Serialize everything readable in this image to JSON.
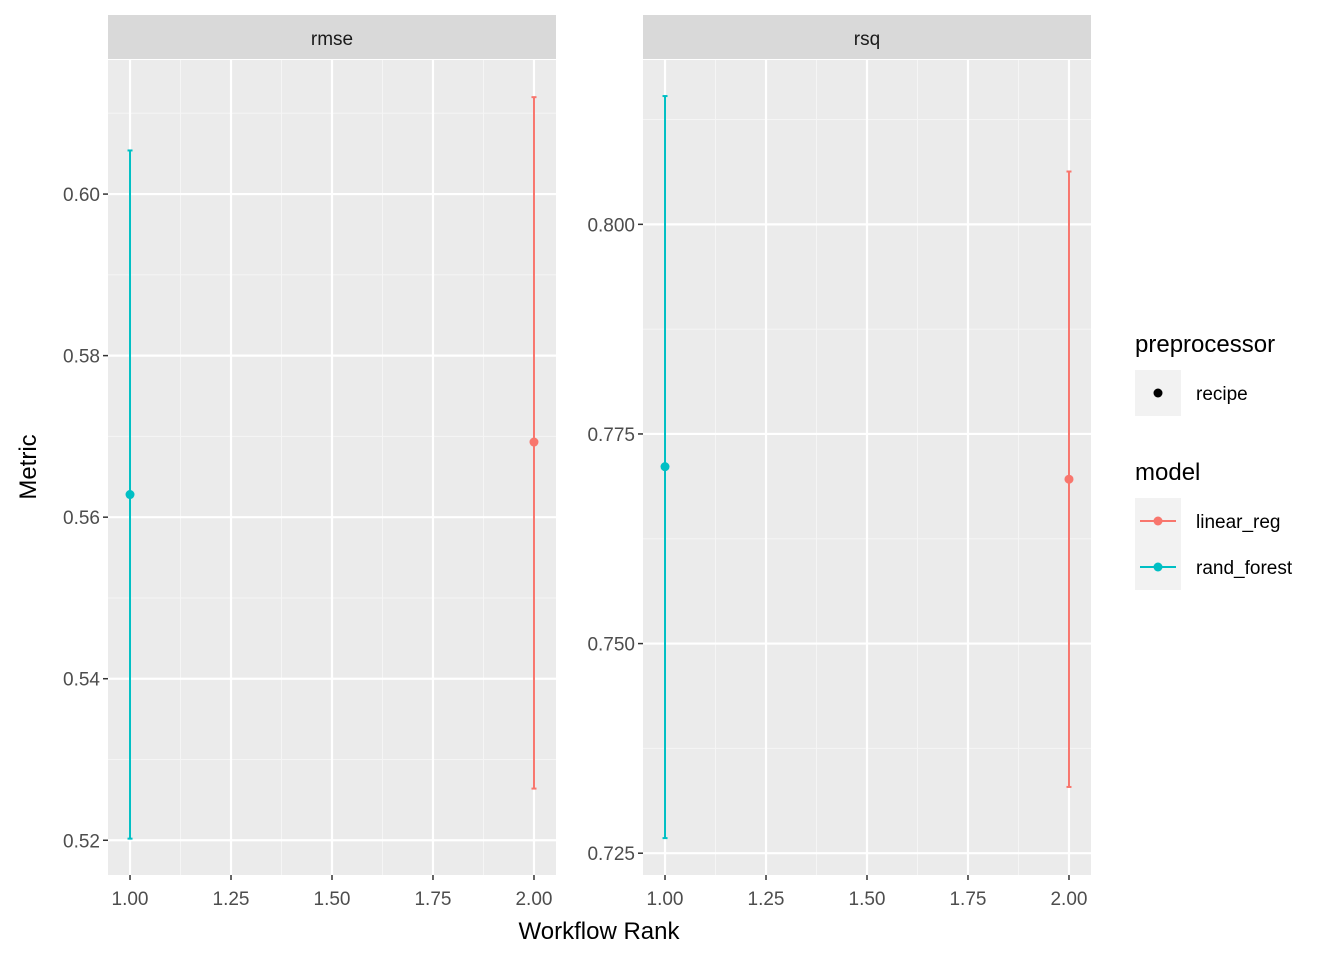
{
  "chart_data": {
    "type": "scatter",
    "subtype": "point-with-errorbars, faceted",
    "xlabel": "Workflow Rank",
    "ylabel": "Metric",
    "x_ticks": [
      "1.00",
      "1.25",
      "1.50",
      "1.75",
      "2.00"
    ],
    "x_tick_values": [
      1.0,
      1.25,
      1.5,
      1.75,
      2.0
    ],
    "xlim": [
      0.9455,
      2.0545
    ],
    "grid": true,
    "colors": {
      "linear_reg": "#F8766D",
      "rand_forest": "#00BFC4",
      "panel_bg": "#EBEBEB",
      "strip_bg": "#D9D9D9"
    },
    "facets": [
      {
        "strip": "rmse",
        "ylim": [
          0.5157,
          0.6166
        ],
        "y_ticks": [
          "0.52",
          "0.54",
          "0.56",
          "0.58",
          "0.60"
        ],
        "y_tick_values": [
          0.52,
          0.54,
          0.56,
          0.58,
          0.6
        ],
        "points": [
          {
            "model": "rand_forest",
            "x": 1,
            "y": 0.5628,
            "ymin": 0.5202,
            "ymax": 0.6054
          },
          {
            "model": "linear_reg",
            "x": 2,
            "y": 0.5693,
            "ymin": 0.5264,
            "ymax": 0.612
          }
        ]
      },
      {
        "strip": "rsq",
        "ylim": [
          0.7224,
          0.8196
        ],
        "y_ticks": [
          "0.725",
          "0.750",
          "0.775",
          "0.800"
        ],
        "y_tick_values": [
          0.725,
          0.75,
          0.775,
          0.8
        ],
        "points": [
          {
            "model": "rand_forest",
            "x": 1,
            "y": 0.7711,
            "ymin": 0.7268,
            "ymax": 0.8153
          },
          {
            "model": "linear_reg",
            "x": 2,
            "y": 0.7696,
            "ymin": 0.7329,
            "ymax": 0.8063
          }
        ]
      }
    ],
    "legend": {
      "placement": "right",
      "groups": [
        {
          "title": "preprocessor",
          "entries": [
            {
              "label": "recipe",
              "color": "#000000"
            }
          ]
        },
        {
          "title": "model",
          "entries": [
            {
              "label": "linear_reg",
              "color": "#F8766D"
            },
            {
              "label": "rand_forest",
              "color": "#00BFC4"
            }
          ]
        }
      ]
    }
  }
}
